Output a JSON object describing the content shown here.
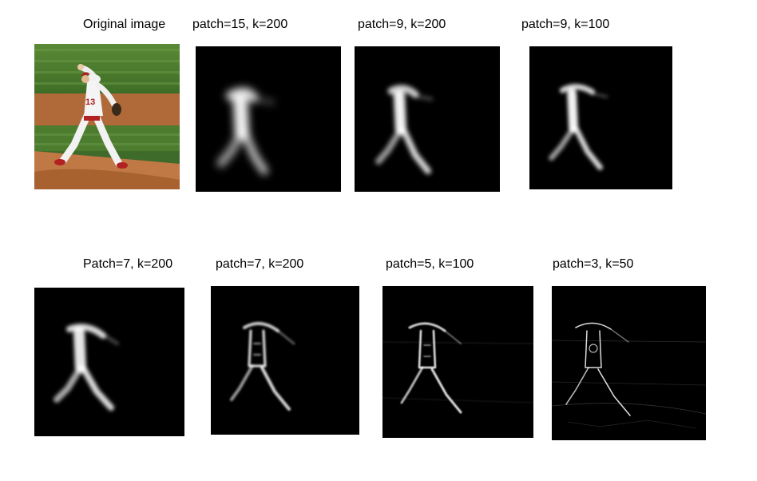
{
  "figure": {
    "row1": {
      "captions": [
        "Original image",
        "patch=15, k=200",
        "patch=9, k=200",
        "patch=9, k=100"
      ]
    },
    "row2": {
      "captions": [
        "Patch=7, k=200",
        "patch=7, k=200",
        "patch=5, k=100",
        "patch=3, k=50"
      ]
    },
    "palette": {
      "background": "#000000",
      "glow": "#ffffff",
      "grass": "#4b7a2e",
      "dirt": "#b8703e",
      "uniform": "#f2f2f2",
      "accent_red": "#b22222"
    }
  }
}
